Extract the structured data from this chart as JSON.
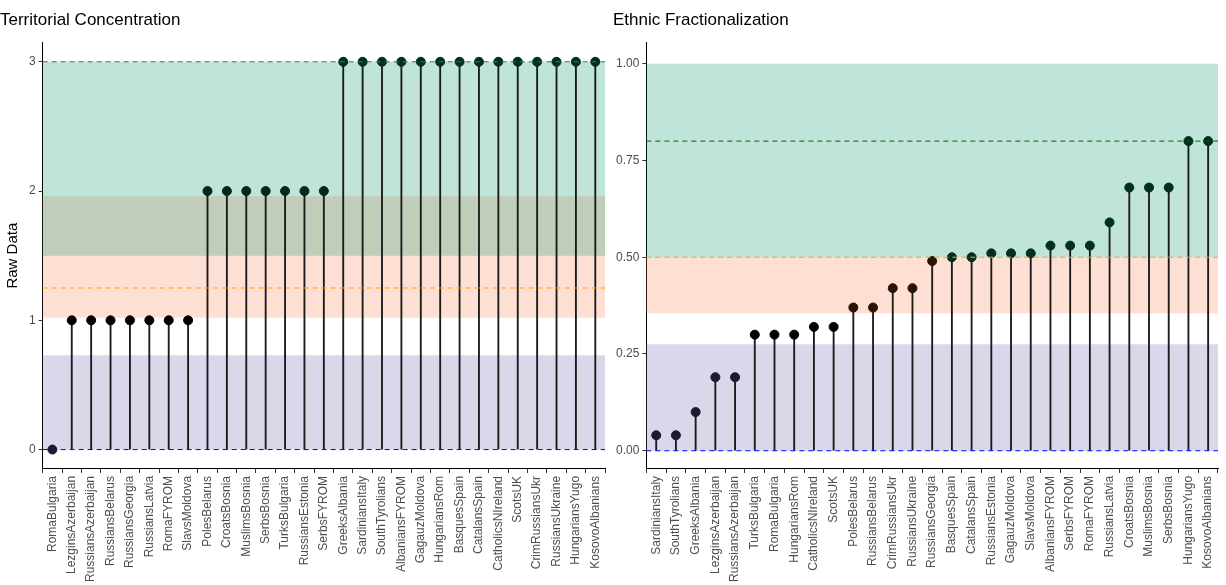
{
  "chart_data": [
    {
      "type": "lollipop",
      "title": "Territorial Concentration",
      "ylabel": "Raw Data",
      "categories": [
        "RomaBulgaria",
        "LezginsAzerbaijan",
        "RussiansAzerbaijan",
        "RussiansBelarus",
        "RussiansGeorgia",
        "RussiansLatvia",
        "RomaFYROM",
        "SlavsMoldova",
        "PolesBelarus",
        "CroatsBosnia",
        "MuslimsBosnia",
        "SerbsBosnia",
        "TurksBulgaria",
        "RussiansEstonia",
        "SerbsFYROM",
        "GreeksAlbania",
        "SardiniansItaly",
        "SouthTyrolians",
        "AlbaniansFYROM",
        "GagauzMoldova",
        "HungariansRom",
        "BasquesSpain",
        "CatalansSpain",
        "CatholicsNIreland",
        "ScotsUK",
        "CrimRussiansUkr",
        "RussiansUkraine",
        "HungariansYugo",
        "KosovoAlbanians"
      ],
      "values": [
        0,
        1,
        1,
        1,
        1,
        1,
        1,
        1,
        2,
        2,
        2,
        2,
        2,
        2,
        2,
        3,
        3,
        3,
        3,
        3,
        3,
        3,
        3,
        3,
        3,
        3,
        3,
        3,
        3
      ],
      "colors": [
        "#1c1a33",
        "#000000",
        "#000000",
        "#000000",
        "#000000",
        "#000000",
        "#000000",
        "#000000",
        "#08261c",
        "#08261c",
        "#08261c",
        "#08261c",
        "#08261c",
        "#08261c",
        "#08261c",
        "#00301f",
        "#00301f",
        "#00301f",
        "#00301f",
        "#00301f",
        "#00301f",
        "#00301f",
        "#00301f",
        "#00301f",
        "#00301f",
        "#00301f",
        "#00301f",
        "#00301f",
        "#00301f"
      ],
      "ylim": [
        -0.15,
        3.15
      ],
      "yticks": [
        0,
        1,
        2,
        3
      ],
      "grid": false,
      "legend": false,
      "bands": [
        {
          "axis": "y",
          "from": 0,
          "to": 0.73,
          "color": "#7570b3"
        },
        {
          "axis": "y",
          "from": 1.02,
          "to": 1.96,
          "color": "#fc8d62"
        },
        {
          "axis": "y",
          "from": 1.5,
          "to": 3,
          "color": "#1b9e77"
        }
      ],
      "ref_lines": [
        {
          "axis": "y",
          "value": 3,
          "color": "#228b22",
          "line_style": "dashed"
        },
        {
          "axis": "y",
          "value": 1.25,
          "color": "#ffa500",
          "line_style": "dashed"
        },
        {
          "axis": "y",
          "value": 0,
          "color": "#0000ff",
          "line_style": "dashed"
        }
      ]
    },
    {
      "type": "lollipop",
      "title": "Ethnic Fractionalization",
      "categories": [
        "SardiniansItaly",
        "SouthTyrolians",
        "GreeksAlbania",
        "LezginsAzerbaijan",
        "RussiansAzerbaijan",
        "TurksBulgaria",
        "RomaBulgaria",
        "HungariansRom",
        "CatholicsNIreland",
        "ScotsUK",
        "PolesBelarus",
        "RussiansBelarus",
        "CrimRussiansUkr",
        "RussiansUkraine",
        "RussiansGeorgia",
        "BasquesSpain",
        "CatalansSpain",
        "RussiansEstonia",
        "GagauzMoldova",
        "SlavsMoldova",
        "AlbaniansFYROM",
        "SerbsFYROM",
        "RomaFYROM",
        "RussiansLatvia",
        "CroatsBosnia",
        "MuslimsBosnia",
        "SerbsBosnia",
        "HungariansYugo",
        "KosovoAlbanians"
      ],
      "values": [
        0.04,
        0.04,
        0.1,
        0.19,
        0.19,
        0.3,
        0.3,
        0.3,
        0.32,
        0.32,
        0.37,
        0.37,
        0.42,
        0.42,
        0.49,
        0.5,
        0.5,
        0.51,
        0.51,
        0.51,
        0.53,
        0.53,
        0.53,
        0.59,
        0.68,
        0.68,
        0.68,
        0.8,
        0.8
      ],
      "colors": [
        "#1c1a33",
        "#1c1a33",
        "#1c1a33",
        "#1c1a33",
        "#1c1a33",
        "#000000",
        "#000000",
        "#000000",
        "#000000",
        "#000000",
        "#2a1505",
        "#2a1505",
        "#2a1505",
        "#2a1505",
        "#2a1505",
        "#00301f",
        "#00301f",
        "#00301f",
        "#00301f",
        "#00301f",
        "#00301f",
        "#00301f",
        "#00301f",
        "#00301f",
        "#00301f",
        "#00301f",
        "#00301f",
        "#00301f",
        "#00301f"
      ],
      "ylim": [
        -0.047,
        1.055
      ],
      "yticks": [
        {
          "value": 0,
          "label": "0.00"
        },
        {
          "value": 0.25,
          "label": "0.25"
        },
        {
          "value": 0.5,
          "label": "0.50"
        },
        {
          "value": 0.75,
          "label": "0.75"
        },
        {
          "value": 1,
          "label": "1.00"
        }
      ],
      "grid": false,
      "legend": false,
      "bands": [
        {
          "axis": "y",
          "from": 0,
          "to": 0.275,
          "color": "#7570b3"
        },
        {
          "axis": "y",
          "from": 0.355,
          "to": 0.5,
          "color": "#fc8d62"
        },
        {
          "axis": "y",
          "from": 0.5,
          "to": 1,
          "color": "#1b9e77"
        }
      ],
      "ref_lines": [
        {
          "axis": "y",
          "value": 0.8,
          "color": "#006400",
          "line_style": "dashed"
        },
        {
          "axis": "y",
          "value": 0.5,
          "color": "#ffa500",
          "line_style": "dashed"
        },
        {
          "axis": "y",
          "value": 0,
          "color": "#0000ff",
          "line_style": "dashed"
        }
      ]
    }
  ]
}
